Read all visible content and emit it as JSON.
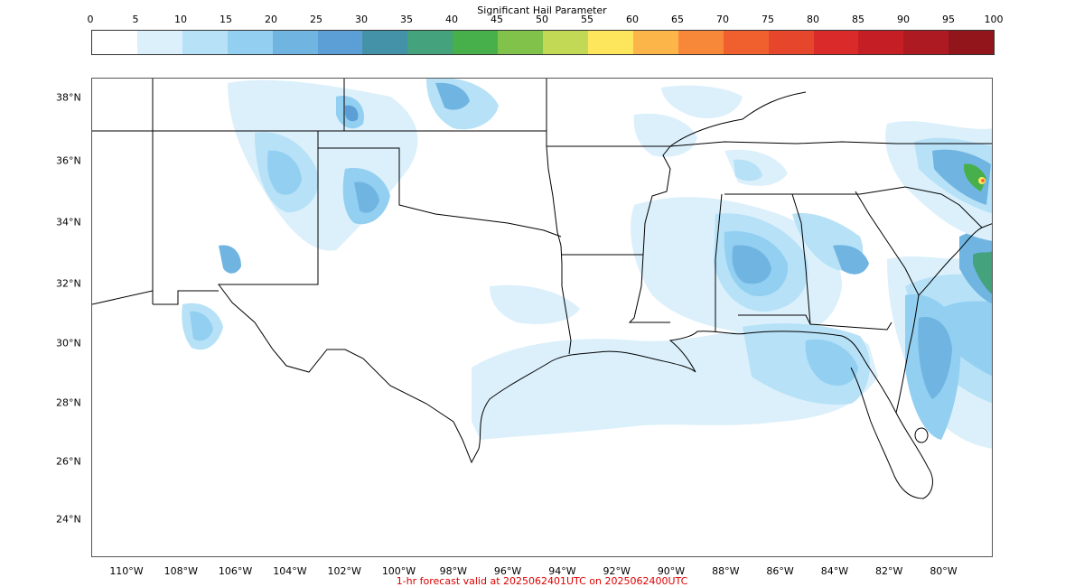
{
  "colorbar": {
    "title": "Significant Hail Parameter",
    "ticks": [
      "0",
      "5",
      "10",
      "15",
      "20",
      "25",
      "30",
      "35",
      "40",
      "45",
      "50",
      "55",
      "60",
      "65",
      "70",
      "75",
      "80",
      "85",
      "90",
      "95",
      "100"
    ],
    "colors": [
      "#ffffff",
      "#dbf0fb",
      "#b6e1f7",
      "#92cff1",
      "#70b5e2",
      "#5b9fd6",
      "#4492a8",
      "#44a27c",
      "#48b04b",
      "#80c24a",
      "#c2d956",
      "#fde55c",
      "#fbb548",
      "#f7883a",
      "#f05f2e",
      "#e6462c",
      "#da2a29",
      "#c51e24",
      "#ae1a22",
      "#92151c"
    ]
  },
  "map": {
    "lat_labels": [
      "38°N",
      "36°N",
      "34°N",
      "32°N",
      "30°N",
      "28°N",
      "26°N",
      "24°N"
    ],
    "lon_labels": [
      "110°W",
      "108°W",
      "106°W",
      "104°W",
      "102°W",
      "100°W",
      "98°W",
      "96°W",
      "94°W",
      "92°W",
      "90°W",
      "88°W",
      "86°W",
      "84°W",
      "82°W",
      "80°W"
    ]
  },
  "footer": {
    "text": "1-hr forecast valid at 2025062401UTC on 2025062400UTC",
    "color": "#dd0000"
  }
}
